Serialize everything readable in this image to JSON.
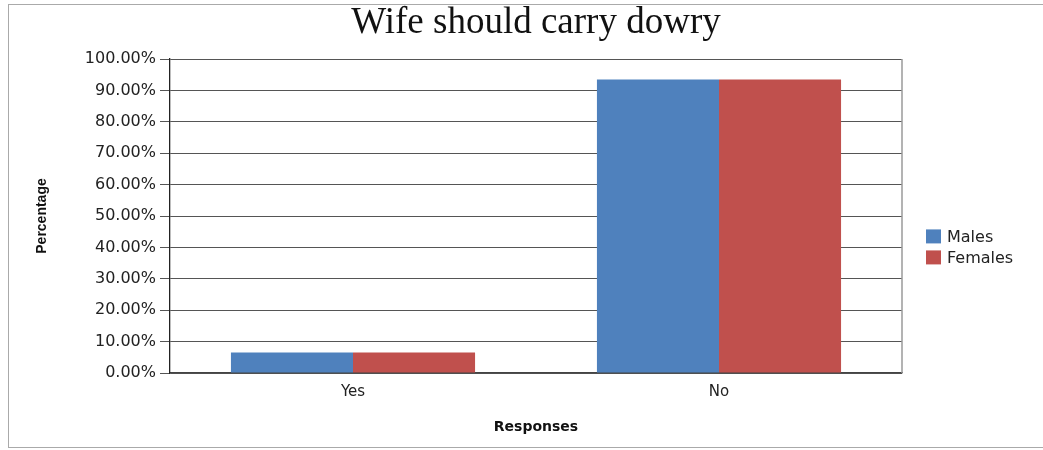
{
  "chart_data": {
    "type": "bar",
    "title": "Wife should carry dowry",
    "xlabel": "Responses",
    "ylabel": "Percentage",
    "categories": [
      "Yes",
      "No"
    ],
    "series": [
      {
        "name": "Males",
        "color": "#4f81bd",
        "values": [
          6.5,
          93.5
        ]
      },
      {
        "name": "Females",
        "color": "#c0504d",
        "values": [
          6.5,
          93.5
        ]
      }
    ],
    "ylim": [
      0,
      100
    ],
    "yticks": [
      {
        "value": 0,
        "label": "0.00%"
      },
      {
        "value": 10,
        "label": "10.00%"
      },
      {
        "value": 20,
        "label": "20.00%"
      },
      {
        "value": 30,
        "label": "30.00%"
      },
      {
        "value": 40,
        "label": "40.00%"
      },
      {
        "value": 50,
        "label": "50.00%"
      },
      {
        "value": 60,
        "label": "60.00%"
      },
      {
        "value": 70,
        "label": "70.00%"
      },
      {
        "value": 80,
        "label": "80.00%"
      },
      {
        "value": 90,
        "label": "90.00%"
      },
      {
        "value": 100,
        "label": "100.00%"
      }
    ],
    "grid": "y",
    "legend": "right"
  }
}
